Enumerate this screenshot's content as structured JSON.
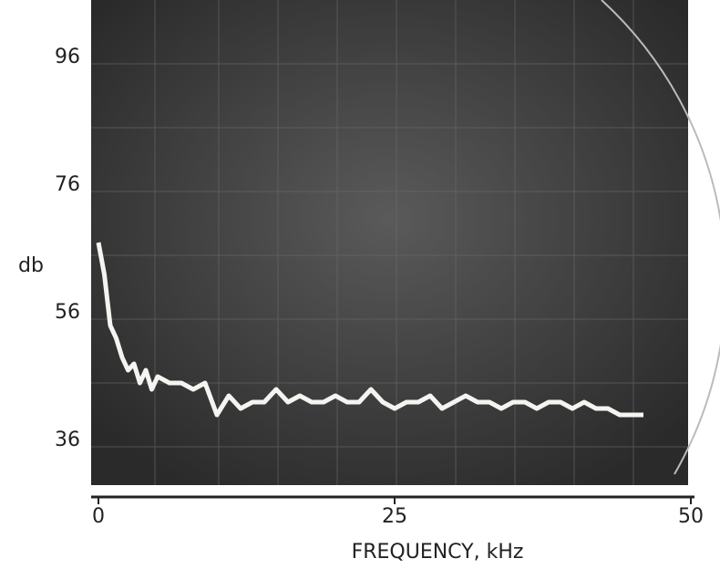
{
  "chart_data": {
    "type": "line",
    "x_label": "FREQUENCY, kHz",
    "y_label": "db",
    "x": [
      0,
      0.5,
      1,
      1.5,
      2,
      2.5,
      3,
      3.5,
      4,
      4.5,
      5,
      6,
      7,
      8,
      9,
      10,
      11,
      12,
      13,
      14,
      15,
      16,
      17,
      18,
      19,
      20,
      21,
      22,
      23,
      24,
      25,
      26,
      27,
      28,
      29,
      30,
      31,
      32,
      33,
      34,
      35,
      36,
      37,
      38,
      39,
      40,
      41,
      42,
      43,
      44,
      45,
      46
    ],
    "values": [
      67,
      62,
      54,
      52,
      49,
      47,
      48,
      45,
      47,
      44,
      46,
      45,
      45,
      44,
      45,
      40,
      43,
      41,
      42,
      42,
      44,
      42,
      43,
      42,
      42,
      43,
      42,
      42,
      44,
      42,
      41,
      42,
      42,
      43,
      41,
      42,
      43,
      42,
      42,
      41,
      42,
      42,
      41,
      42,
      42,
      41,
      42,
      41,
      41,
      40,
      40,
      40
    ],
    "color": "#f4f4f0",
    "xlim": [
      0,
      50
    ],
    "xticks": [
      0,
      25,
      50
    ],
    "ylim": [
      29,
      105
    ],
    "yticks": [
      36,
      56,
      76,
      96
    ]
  }
}
